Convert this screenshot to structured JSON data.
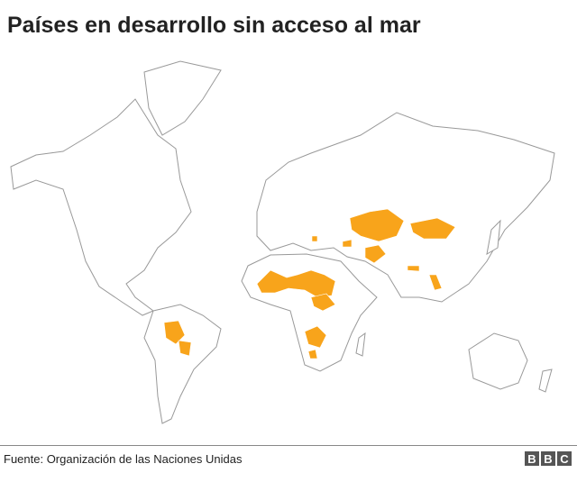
{
  "header": {
    "title": "Países en desarrollo sin acceso al mar"
  },
  "footer": {
    "source": "Fuente: Organización de las Naciones Unidas",
    "logo": [
      "B",
      "B",
      "C"
    ]
  }
}
